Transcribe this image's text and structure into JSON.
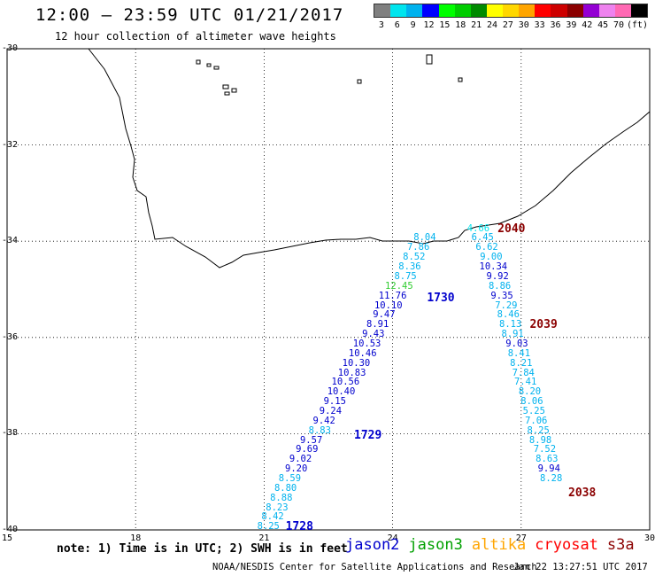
{
  "title": "12:00 – 23:59 UTC 01/21/2017",
  "subtitle": "12 hour collection of altimeter wave heights",
  "legend": {
    "colors": [
      "#808080",
      "#00e5ee",
      "#00b2ee",
      "#0000ff",
      "#00ff00",
      "#00cd00",
      "#008b00",
      "#ffff00",
      "#ffd700",
      "#ffa500",
      "#ff0000",
      "#cd0000",
      "#8b0000",
      "#9400d3",
      "#ee82ee",
      "#ff69b4",
      "#000000"
    ],
    "labels": [
      "3",
      "6",
      "9",
      "12",
      "15",
      "18",
      "21",
      "24",
      "27",
      "30",
      "33",
      "36",
      "39",
      "42",
      "45",
      "70",
      "(ft)"
    ]
  },
  "axes": {
    "lat_labels": [
      "-30",
      "-32",
      "-34",
      "-36",
      "-38",
      "-40"
    ],
    "lat_values": [
      -30,
      -32,
      -34,
      -36,
      -38,
      -40
    ],
    "lon_labels": [
      "15",
      "18",
      "21",
      "24",
      "27",
      "30"
    ],
    "lon_values": [
      15,
      18,
      21,
      24,
      27,
      30
    ],
    "lat_range": [
      -40,
      -30
    ],
    "lon_range": [
      15,
      30
    ],
    "grid": true
  },
  "tracks": [
    {
      "id": "jason2-1728-1730",
      "satellite": "jason2",
      "passes": [
        {
          "label": "1728",
          "color": "#0000cd",
          "lon": 21.5,
          "lat": -39.95
        },
        {
          "label": "1729",
          "color": "#0000cd",
          "lon": 23.1,
          "lat": -38.05
        },
        {
          "label": "1730",
          "color": "#0000cd",
          "lon": 24.8,
          "lat": -35.2
        }
      ],
      "points": [
        {
          "v": "8.25",
          "lon": 21.1,
          "lat": -39.95,
          "c": "#00b2ee"
        },
        {
          "v": "8.42",
          "lon": 21.2,
          "lat": -39.75,
          "c": "#00b2ee"
        },
        {
          "v": "8.23",
          "lon": 21.3,
          "lat": -39.55,
          "c": "#00b2ee"
        },
        {
          "v": "8.88",
          "lon": 21.4,
          "lat": -39.35,
          "c": "#00b2ee"
        },
        {
          "v": "8.80",
          "lon": 21.5,
          "lat": -39.15,
          "c": "#00b2ee"
        },
        {
          "v": "8.59",
          "lon": 21.6,
          "lat": -38.95,
          "c": "#00b2ee"
        },
        {
          "v": "9.20",
          "lon": 21.75,
          "lat": -38.75,
          "c": "#0000cd"
        },
        {
          "v": "9.02",
          "lon": 21.85,
          "lat": -38.55,
          "c": "#0000cd"
        },
        {
          "v": "9.69",
          "lon": 22.0,
          "lat": -38.35,
          "c": "#0000cd"
        },
        {
          "v": "9.57",
          "lon": 22.1,
          "lat": -38.15,
          "c": "#0000cd"
        },
        {
          "v": "8.83",
          "lon": 22.3,
          "lat": -37.95,
          "c": "#00b2ee"
        },
        {
          "v": "9.42",
          "lon": 22.4,
          "lat": -37.75,
          "c": "#0000cd"
        },
        {
          "v": "9.24",
          "lon": 22.55,
          "lat": -37.55,
          "c": "#0000cd"
        },
        {
          "v": "9.15",
          "lon": 22.65,
          "lat": -37.35,
          "c": "#0000cd"
        },
        {
          "v": "10.40",
          "lon": 22.8,
          "lat": -37.15,
          "c": "#0000cd"
        },
        {
          "v": "10.56",
          "lon": 22.9,
          "lat": -36.95,
          "c": "#0000cd"
        },
        {
          "v": "10.83",
          "lon": 23.05,
          "lat": -36.75,
          "c": "#0000cd"
        },
        {
          "v": "10.30",
          "lon": 23.15,
          "lat": -36.55,
          "c": "#0000cd"
        },
        {
          "v": "10.46",
          "lon": 23.3,
          "lat": -36.35,
          "c": "#0000cd"
        },
        {
          "v": "10.53",
          "lon": 23.4,
          "lat": -36.15,
          "c": "#0000cd"
        },
        {
          "v": "9.43",
          "lon": 23.55,
          "lat": -35.95,
          "c": "#0000cd"
        },
        {
          "v": "8.91",
          "lon": 23.65,
          "lat": -35.75,
          "c": "#0000cd"
        },
        {
          "v": "9.47",
          "lon": 23.8,
          "lat": -35.55,
          "c": "#0000cd"
        },
        {
          "v": "10.10",
          "lon": 23.9,
          "lat": -35.35,
          "c": "#0000cd"
        },
        {
          "v": "11.76",
          "lon": 24.0,
          "lat": -35.15,
          "c": "#0000cd"
        },
        {
          "v": "12.45",
          "lon": 24.15,
          "lat": -34.95,
          "c": "#32cd32"
        },
        {
          "v": "8.75",
          "lon": 24.3,
          "lat": -34.75,
          "c": "#00b2ee"
        },
        {
          "v": "8.36",
          "lon": 24.4,
          "lat": -34.55,
          "c": "#00b2ee"
        },
        {
          "v": "8.52",
          "lon": 24.5,
          "lat": -34.35,
          "c": "#00b2ee"
        },
        {
          "v": "7.86",
          "lon": 24.6,
          "lat": -34.15,
          "c": "#00b2ee"
        },
        {
          "v": "8.04",
          "lon": 24.75,
          "lat": -33.95,
          "c": "#00b2ee"
        }
      ]
    },
    {
      "id": "cryosat-2038-2040",
      "satellite": "cryosat",
      "passes": [
        {
          "label": "2040",
          "color": "#8b0000",
          "lon": 26.45,
          "lat": -33.75
        },
        {
          "label": "2039",
          "color": "#8b0000",
          "lon": 27.2,
          "lat": -35.75
        },
        {
          "label": "2038",
          "color": "#8b0000",
          "lon": 28.1,
          "lat": -39.25
        }
      ],
      "points": [
        {
          "v": "4.66",
          "lon": 26.0,
          "lat": -33.75,
          "c": "#00e5ee"
        },
        {
          "v": "6.45",
          "lon": 26.1,
          "lat": -33.95,
          "c": "#00b2ee"
        },
        {
          "v": "6.62",
          "lon": 26.2,
          "lat": -34.15,
          "c": "#00b2ee"
        },
        {
          "v": "9.00",
          "lon": 26.3,
          "lat": -34.35,
          "c": "#00b2ee"
        },
        {
          "v": "10.34",
          "lon": 26.35,
          "lat": -34.55,
          "c": "#0000cd"
        },
        {
          "v": "9.92",
          "lon": 26.45,
          "lat": -34.75,
          "c": "#0000cd"
        },
        {
          "v": "8.86",
          "lon": 26.5,
          "lat": -34.95,
          "c": "#00b2ee"
        },
        {
          "v": "9.35",
          "lon": 26.55,
          "lat": -35.15,
          "c": "#0000cd"
        },
        {
          "v": "7.29",
          "lon": 26.65,
          "lat": -35.35,
          "c": "#00b2ee"
        },
        {
          "v": "8.46",
          "lon": 26.7,
          "lat": -35.55,
          "c": "#00b2ee"
        },
        {
          "v": "8.13",
          "lon": 26.75,
          "lat": -35.75,
          "c": "#00b2ee"
        },
        {
          "v": "8.91",
          "lon": 26.8,
          "lat": -35.95,
          "c": "#00b2ee"
        },
        {
          "v": "9.03",
          "lon": 26.9,
          "lat": -36.15,
          "c": "#0000cd"
        },
        {
          "v": "8.41",
          "lon": 26.95,
          "lat": -36.35,
          "c": "#00b2ee"
        },
        {
          "v": "8.21",
          "lon": 27.0,
          "lat": -36.55,
          "c": "#00b2ee"
        },
        {
          "v": "7.84",
          "lon": 27.05,
          "lat": -36.75,
          "c": "#00b2ee"
        },
        {
          "v": "7.41",
          "lon": 27.1,
          "lat": -36.95,
          "c": "#00b2ee"
        },
        {
          "v": "8.20",
          "lon": 27.2,
          "lat": -37.15,
          "c": "#00b2ee"
        },
        {
          "v": "8.06",
          "lon": 27.25,
          "lat": -37.35,
          "c": "#00b2ee"
        },
        {
          "v": "5.25",
          "lon": 27.3,
          "lat": -37.55,
          "c": "#00b2ee"
        },
        {
          "v": "7.06",
          "lon": 27.35,
          "lat": -37.75,
          "c": "#00b2ee"
        },
        {
          "v": "8.25",
          "lon": 27.4,
          "lat": -37.95,
          "c": "#00b2ee"
        },
        {
          "v": "8.98",
          "lon": 27.45,
          "lat": -38.15,
          "c": "#00b2ee"
        },
        {
          "v": "7.52",
          "lon": 27.55,
          "lat": -38.35,
          "c": "#00b2ee"
        },
        {
          "v": "8.63",
          "lon": 27.6,
          "lat": -38.55,
          "c": "#00b2ee"
        },
        {
          "v": "9.94",
          "lon": 27.65,
          "lat": -38.75,
          "c": "#0000cd"
        },
        {
          "v": "8.28",
          "lon": 27.7,
          "lat": -38.95,
          "c": "#00b2ee"
        }
      ]
    }
  ],
  "note": "note: 1) Time is in UTC; 2) SWH is in feet",
  "satellites": [
    {
      "name": "jason2",
      "color": "#0000cd"
    },
    {
      "name": "jason3",
      "color": "#00a000"
    },
    {
      "name": "altika",
      "color": "#ffa500"
    },
    {
      "name": "cryosat",
      "color": "#ff0000"
    },
    {
      "name": "s3a",
      "color": "#8b0000"
    }
  ],
  "credit": "NOAA/NESDIS Center for Satellite Applications and Research",
  "generated": "Jan 22 13:27:51 UTC 2017"
}
